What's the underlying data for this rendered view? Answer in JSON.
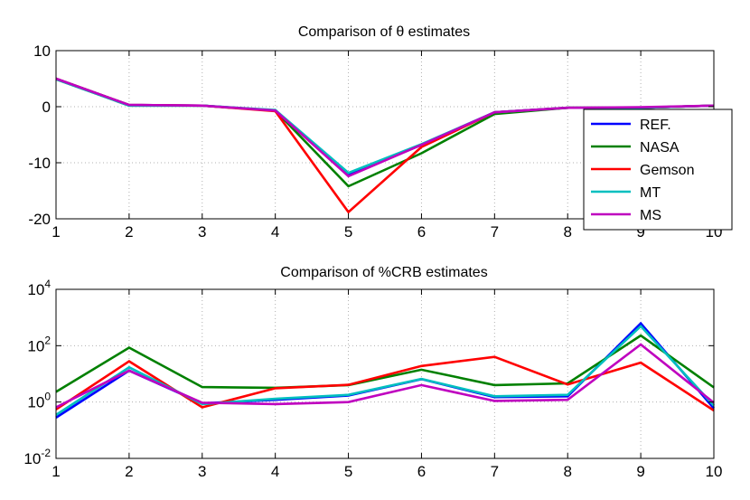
{
  "chart_data": [
    {
      "type": "line",
      "title": "Comparison of θ estimates",
      "xlabel": "",
      "ylabel": "",
      "xlim": [
        1,
        10
      ],
      "ylim": [
        -20,
        10
      ],
      "yscale": "linear",
      "grid": true,
      "x": [
        1,
        2,
        3,
        4,
        5,
        6,
        7,
        8,
        9,
        10
      ],
      "xticks": [
        1,
        2,
        3,
        4,
        5,
        6,
        7,
        8,
        9,
        10
      ],
      "yticks": [
        10,
        0,
        -10,
        -20
      ],
      "legend_position": "right",
      "series": [
        {
          "name": "REF.",
          "color": "#0000ff",
          "values": [
            5.0,
            0.3,
            0.2,
            -0.7,
            -12.2,
            -6.8,
            -1.0,
            -0.2,
            -0.2,
            0.2
          ]
        },
        {
          "name": "NASA",
          "color": "#008000",
          "values": [
            4.9,
            0.2,
            0.2,
            -0.7,
            -14.2,
            -8.3,
            -1.3,
            -0.2,
            -0.2,
            0.2
          ]
        },
        {
          "name": "Gemson",
          "color": "#ff0000",
          "values": [
            5.0,
            0.3,
            0.2,
            -0.8,
            -18.8,
            -7.2,
            -1.0,
            -0.2,
            -0.2,
            0.2
          ]
        },
        {
          "name": "MT",
          "color": "#00bfbf",
          "values": [
            4.9,
            0.2,
            0.2,
            -0.6,
            -11.8,
            -6.7,
            -1.0,
            -0.2,
            -0.2,
            0.2
          ]
        },
        {
          "name": "MS",
          "color": "#bf00bf",
          "values": [
            5.0,
            0.3,
            0.2,
            -0.7,
            -12.4,
            -6.8,
            -1.0,
            -0.2,
            -0.1,
            0.2
          ]
        }
      ]
    },
    {
      "type": "line",
      "title": "Comparison of  %CRB estimates",
      "xlabel": "",
      "ylabel": "",
      "xlim": [
        1,
        10
      ],
      "ylim": [
        0.01,
        10000
      ],
      "yscale": "log",
      "grid": true,
      "x": [
        1,
        2,
        3,
        4,
        5,
        6,
        7,
        8,
        9,
        10
      ],
      "xticks": [
        1,
        2,
        3,
        4,
        5,
        6,
        7,
        8,
        9,
        10
      ],
      "yticks": [
        {
          "base": "10",
          "exp": "4",
          "value": 10000
        },
        {
          "base": "10",
          "exp": "2",
          "value": 100
        },
        {
          "base": "10",
          "exp": "0",
          "value": 1
        },
        {
          "base": "10",
          "exp": "-2",
          "value": 0.01
        }
      ],
      "series": [
        {
          "name": "REF.",
          "color": "#0000ff",
          "values": [
            0.28,
            13,
            0.9,
            1.2,
            1.7,
            6.5,
            1.5,
            1.6,
            620,
            0.6
          ]
        },
        {
          "name": "NASA",
          "color": "#008000",
          "values": [
            2.3,
            85,
            3.4,
            3.2,
            4,
            14,
            4,
            4.6,
            230,
            3.3
          ]
        },
        {
          "name": "Gemson",
          "color": "#ff0000",
          "values": [
            0.55,
            28,
            0.65,
            3.1,
            4.1,
            19,
            40,
            4.2,
            25,
            0.5
          ]
        },
        {
          "name": "MT",
          "color": "#00bfbf",
          "values": [
            0.35,
            17,
            0.85,
            1.3,
            1.8,
            6.6,
            1.6,
            1.8,
            490,
            0.75
          ]
        },
        {
          "name": "MS",
          "color": "#bf00bf",
          "values": [
            0.65,
            13,
            0.95,
            0.85,
            1.0,
            4.0,
            1.1,
            1.2,
            110,
            0.95
          ]
        }
      ]
    }
  ]
}
